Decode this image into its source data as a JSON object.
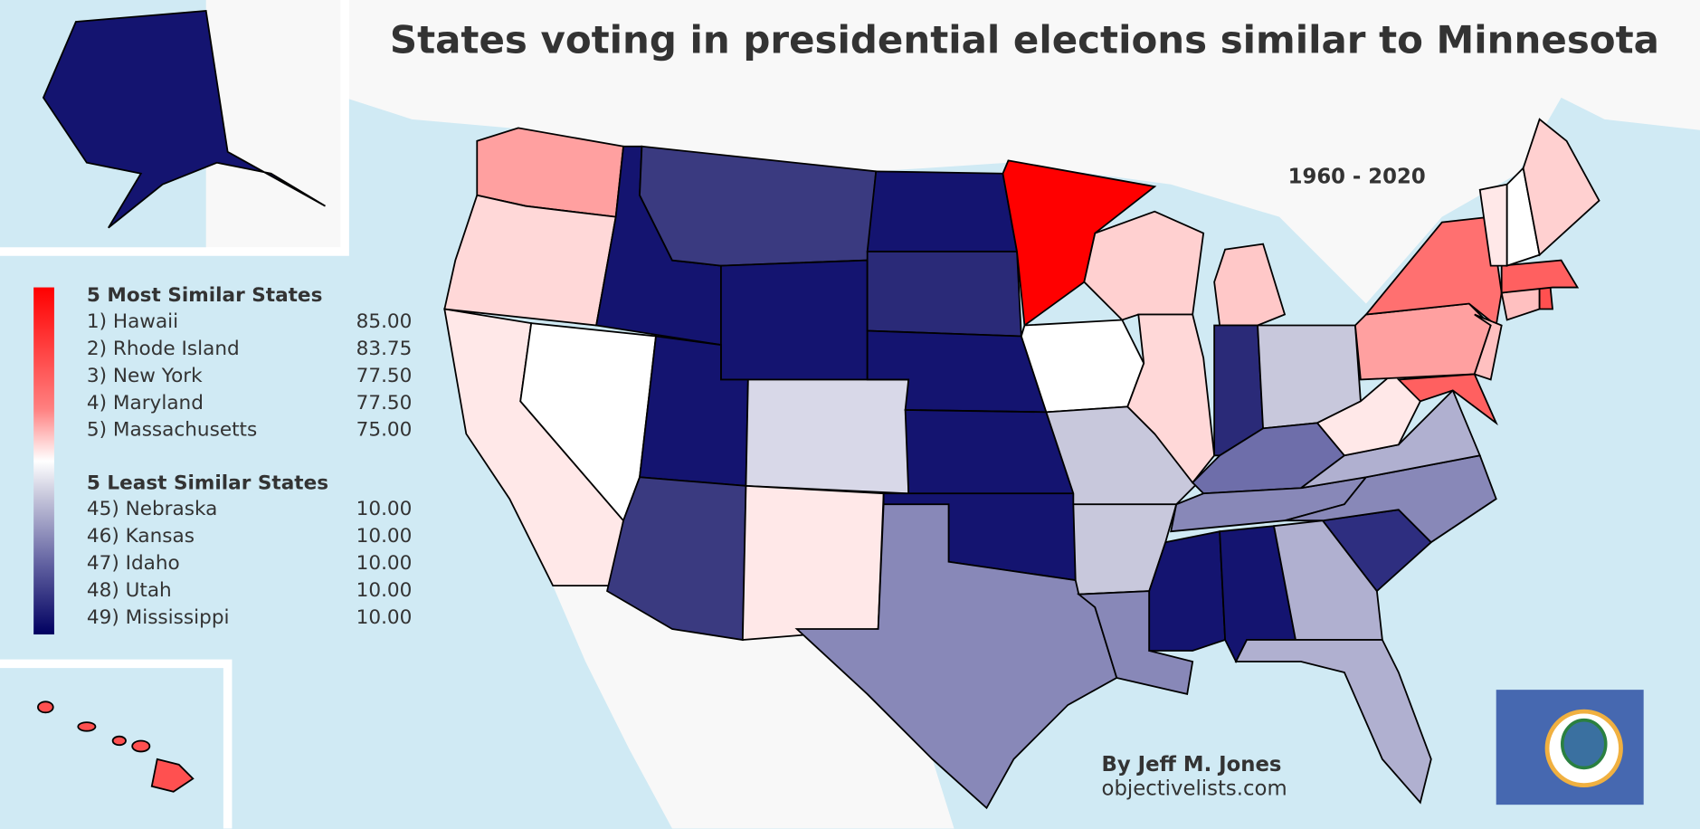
{
  "title": "States voting in presidential elections similar to Minnesota",
  "period": "1960 - 2020",
  "legend": {
    "most_heading": "5 Most Similar States",
    "most": [
      {
        "label": "1) Hawaii",
        "value": "85.00"
      },
      {
        "label": "2) Rhode Island",
        "value": "83.75"
      },
      {
        "label": "3) New York",
        "value": "77.50"
      },
      {
        "label": "4) Maryland",
        "value": "77.50"
      },
      {
        "label": "5) Massachusetts",
        "value": "75.00"
      }
    ],
    "least_heading": "5 Least Similar States",
    "least": [
      {
        "label": "45) Nebraska",
        "value": "10.00"
      },
      {
        "label": "46) Kansas",
        "value": "10.00"
      },
      {
        "label": "47) Idaho",
        "value": "10.00"
      },
      {
        "label": "48) Utah",
        "value": "10.00"
      },
      {
        "label": "49) Mississippi",
        "value": "10.00"
      }
    ],
    "scale_colors": [
      "#ff0000",
      "#ffffff",
      "#000060"
    ]
  },
  "credit": {
    "author": "By Jeff M. Jones",
    "site": "objectivelists.com"
  },
  "colors": {
    "ocean": "#d0eaf4",
    "land": "#f8f8f8",
    "flag": "#4668b0"
  },
  "state_fills": {
    "WA": "#ffa0a0",
    "OR": "#ffd8d8",
    "CA": "#ffe8e8",
    "NV": "#ffffff",
    "ID": "#141470",
    "MT": "#3a3a80",
    "WY": "#141470",
    "UT": "#141470",
    "CO": "#d8d8e8",
    "AZ": "#3a3a80",
    "NM": "#ffe8e8",
    "ND": "#141470",
    "SD": "#2a2a78",
    "NE": "#141470",
    "KS": "#141470",
    "OK": "#141470",
    "TX": "#8888b8",
    "MN": "#ff0000",
    "IA": "#ffffff",
    "MO": "#c8c8dc",
    "AR": "#c8c8dc",
    "LA": "#8888b8",
    "WI": "#ffd0d0",
    "IL": "#ffd8d8",
    "MI": "#ffc8c8",
    "IN": "#2a2a78",
    "OH": "#c8c8dc",
    "KY": "#6e6eaa",
    "TN": "#8888b8",
    "MS": "#141470",
    "AL": "#141470",
    "GA": "#b0b0d0",
    "FL": "#b0b0d0",
    "SC": "#2e2e80",
    "NC": "#8888b8",
    "VA": "#b0b0d0",
    "WV": "#ffe8e8",
    "PA": "#ffa0a0",
    "NY": "#ff7070",
    "MD": "#ff6060",
    "NJ": "#ffc0c0",
    "CT": "#ffc0c0",
    "RI": "#ff5050",
    "MA": "#ff6060",
    "VT": "#ffe8e8",
    "NH": "#ffffff",
    "ME": "#ffd0d0",
    "AK": "#141470",
    "HI": "#ff5050"
  }
}
